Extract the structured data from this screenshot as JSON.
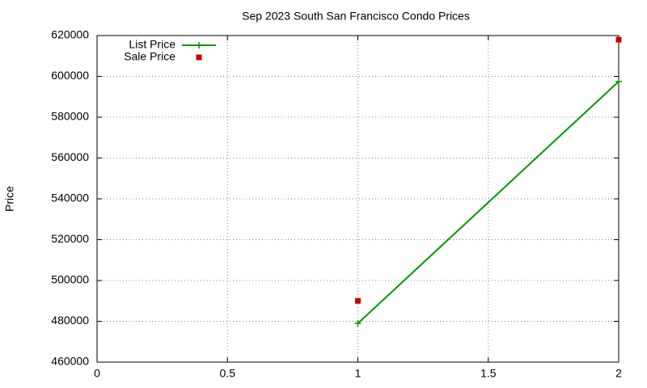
{
  "chart_data": {
    "type": "line",
    "title": "Sep 2023 South San Francisco Condo Prices",
    "y_label": "Price",
    "x": [
      1,
      2
    ],
    "series": [
      {
        "name": "List Price",
        "color": "#009900",
        "mode": "lines+markers",
        "values": [
          479000,
          597500
        ]
      },
      {
        "name": "Sale Price",
        "color": "#cc0000",
        "mode": "markers",
        "values": [
          490000,
          618000
        ]
      }
    ],
    "xlim": [
      0,
      2
    ],
    "xticks": [
      0,
      0.5,
      1,
      1.5,
      2
    ],
    "ylim": [
      460000,
      620000
    ],
    "yticks": [
      460000,
      480000,
      500000,
      520000,
      540000,
      560000,
      580000,
      600000,
      620000
    ],
    "grid": true,
    "legend": "top-left"
  }
}
